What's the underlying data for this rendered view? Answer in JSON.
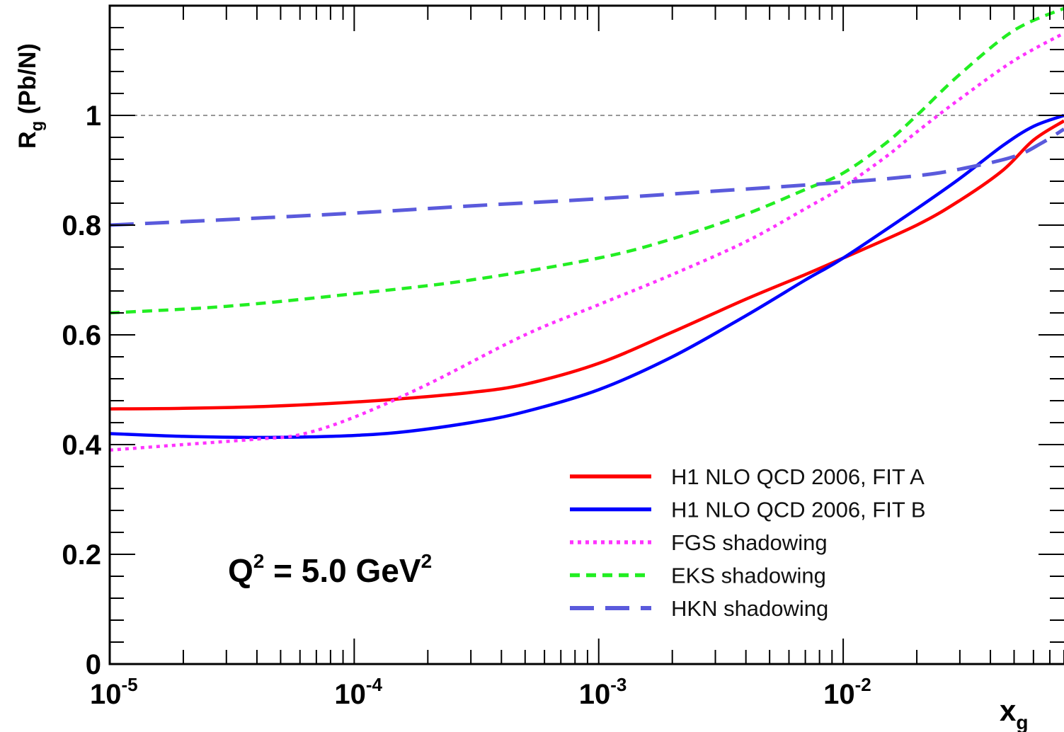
{
  "chart_data": {
    "type": "line",
    "title": "",
    "x_scale": "log",
    "xlim": [
      1e-05,
      0.08
    ],
    "ylim": [
      0,
      1.2
    ],
    "xlabel": {
      "base": "x",
      "sub": "g"
    },
    "ylabel": {
      "base": "R",
      "sub": "g",
      "rest": " (Pb/N)"
    },
    "x_ticks": [
      {
        "value": 1e-05,
        "base": "10",
        "exp": "-5"
      },
      {
        "value": 0.0001,
        "base": "10",
        "exp": "-4"
      },
      {
        "value": 0.001,
        "base": "10",
        "exp": "-3"
      },
      {
        "value": 0.01,
        "base": "10",
        "exp": "-2"
      }
    ],
    "y_ticks": [
      {
        "value": 0,
        "label": "0"
      },
      {
        "value": 0.2,
        "label": "0.2"
      },
      {
        "value": 0.4,
        "label": "0.4"
      },
      {
        "value": 0.6,
        "label": "0.6"
      },
      {
        "value": 0.8,
        "label": "0.8"
      },
      {
        "value": 1,
        "label": "1"
      }
    ],
    "reference_line": {
      "y": 1,
      "style": "dashed",
      "color": "#777777"
    },
    "annotation": {
      "part1": "Q",
      "sup1": "2",
      "part2": " = 5.0 GeV",
      "sup2": "2"
    },
    "legend_position": "lower-right",
    "series": [
      {
        "name": "H1 NLO QCD 2006, FIT A",
        "color": "#ff0000",
        "dash": "solid",
        "x": [
          1e-05,
          2e-05,
          4e-05,
          8e-05,
          0.00015,
          0.0003,
          0.0005,
          0.001,
          0.002,
          0.004,
          0.007,
          0.01,
          0.02,
          0.03,
          0.045,
          0.06,
          0.08
        ],
        "y": [
          0.465,
          0.466,
          0.469,
          0.475,
          0.483,
          0.495,
          0.51,
          0.548,
          0.605,
          0.665,
          0.71,
          0.74,
          0.8,
          0.845,
          0.9,
          0.955,
          0.99
        ]
      },
      {
        "name": "H1 NLO QCD 2006, FIT B",
        "color": "#0000ff",
        "dash": "solid",
        "x": [
          1e-05,
          2e-05,
          4e-05,
          8e-05,
          0.00015,
          0.0003,
          0.0005,
          0.001,
          0.002,
          0.004,
          0.007,
          0.01,
          0.02,
          0.03,
          0.045,
          0.06,
          0.08
        ],
        "y": [
          0.42,
          0.415,
          0.413,
          0.415,
          0.422,
          0.44,
          0.46,
          0.5,
          0.56,
          0.635,
          0.7,
          0.74,
          0.83,
          0.885,
          0.945,
          0.98,
          1.0
        ]
      },
      {
        "name": "FGS shadowing",
        "color": "#ff33ff",
        "dash": "dotted",
        "x": [
          1e-05,
          2e-05,
          4e-05,
          6e-05,
          0.0001,
          0.0002,
          0.0005,
          0.001,
          0.002,
          0.004,
          0.007,
          0.01,
          0.015,
          0.02,
          0.03,
          0.05,
          0.08
        ],
        "y": [
          0.39,
          0.4,
          0.41,
          0.418,
          0.45,
          0.51,
          0.6,
          0.655,
          0.71,
          0.77,
          0.83,
          0.87,
          0.925,
          0.97,
          1.03,
          1.1,
          1.15
        ]
      },
      {
        "name": "EKS shadowing",
        "color": "#22ee22",
        "dash": "dashed",
        "x": [
          1e-05,
          3e-05,
          0.0001,
          0.0003,
          0.001,
          0.002,
          0.004,
          0.007,
          0.01,
          0.015,
          0.02,
          0.03,
          0.05,
          0.08
        ],
        "y": [
          0.64,
          0.652,
          0.675,
          0.7,
          0.74,
          0.775,
          0.82,
          0.865,
          0.895,
          0.95,
          1.0,
          1.075,
          1.155,
          1.195
        ]
      },
      {
        "name": "HKN shadowing",
        "color": "#5a5adc",
        "dash": "longdash",
        "x": [
          1e-05,
          3e-05,
          0.0001,
          0.0003,
          0.001,
          0.003,
          0.01,
          0.02,
          0.03,
          0.05,
          0.065,
          0.08
        ],
        "y": [
          0.8,
          0.81,
          0.822,
          0.835,
          0.848,
          0.862,
          0.878,
          0.89,
          0.902,
          0.925,
          0.95,
          0.975
        ]
      }
    ]
  }
}
